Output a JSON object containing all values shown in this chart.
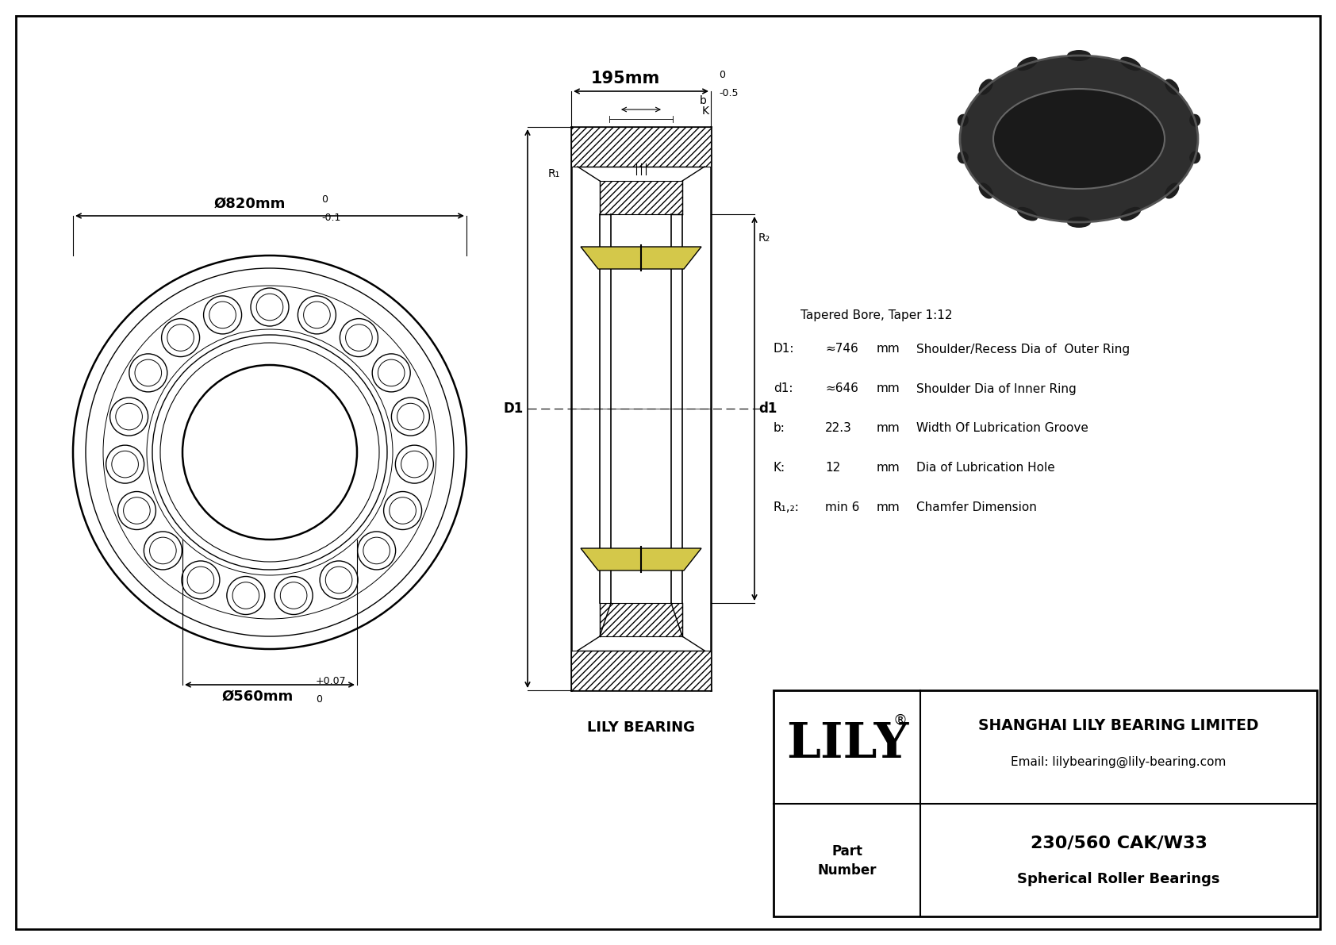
{
  "bg_color": "#ffffff",
  "lc": "#000000",
  "outer_dia_label": "Ø820mm",
  "outer_dia_tol_top": "0",
  "outer_dia_tol_bot": "-0.1",
  "inner_dia_label": "Ø560mm",
  "inner_dia_tol_top": "+0.07",
  "inner_dia_tol_bot": "0",
  "width_label": "195mm",
  "width_tol_top": "0",
  "width_tol_bot": "-0.5",
  "dim_D1": "D1",
  "dim_d1": "d1",
  "dim_b": "b",
  "dim_K": "K",
  "dim_R1": "R₁",
  "dim_R2": "R₂",
  "lily_bearing_label": "LILY BEARING",
  "tapered_bore": "Tapered Bore, Taper 1:12",
  "params": [
    {
      "label": "D1:",
      "value": "≈746",
      "unit": "mm",
      "desc": "Shoulder/Recess Dia of  Outer Ring"
    },
    {
      "label": "d1:",
      "value": "≈646",
      "unit": "mm",
      "desc": "Shoulder Dia of Inner Ring"
    },
    {
      "label": "b:",
      "value": "22.3",
      "unit": "mm",
      "desc": "Width Of Lubrication Groove"
    },
    {
      "label": "K:",
      "value": "12",
      "unit": "mm",
      "desc": "Dia of Lubrication Hole"
    },
    {
      "label": "R₁,₂:",
      "value": "min 6",
      "unit": "mm",
      "desc": "Chamfer Dimension"
    }
  ],
  "lily_text": "LILY",
  "reg_mark": "®",
  "title_company": "SHANGHAI LILY BEARING LIMITED",
  "title_email": "Email: lilybearing@lily-bearing.com",
  "part_label_line1": "Part",
  "part_label_line2": "Number",
  "part_number": "230/560 CAK/W33",
  "part_type": "Spherical Roller Bearings"
}
